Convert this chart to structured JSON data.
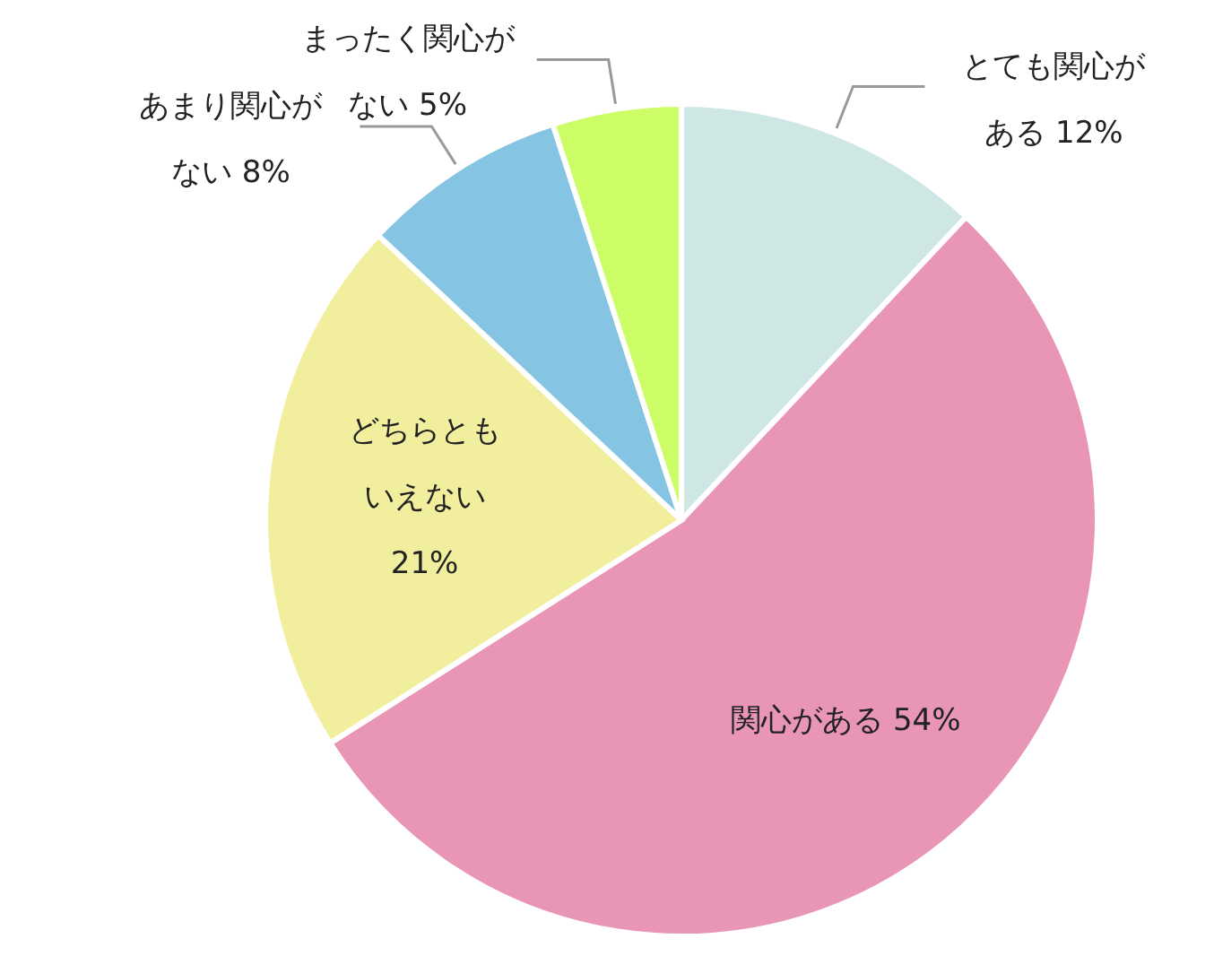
{
  "chart_data": {
    "type": "pie",
    "categories": [
      "とても関心がある",
      "関心がある",
      "どちらともいえない",
      "あまり関心がない",
      "まったく関心がない"
    ],
    "values": [
      12,
      54,
      21,
      8,
      5
    ],
    "value_labels": [
      "12%",
      "54%",
      "21%",
      "8%",
      "5%"
    ],
    "colors": [
      "#cfe7e4",
      "#e895b6",
      "#f1ef9d",
      "#86c4e3",
      "#cdfd66"
    ],
    "legend": false
  }
}
